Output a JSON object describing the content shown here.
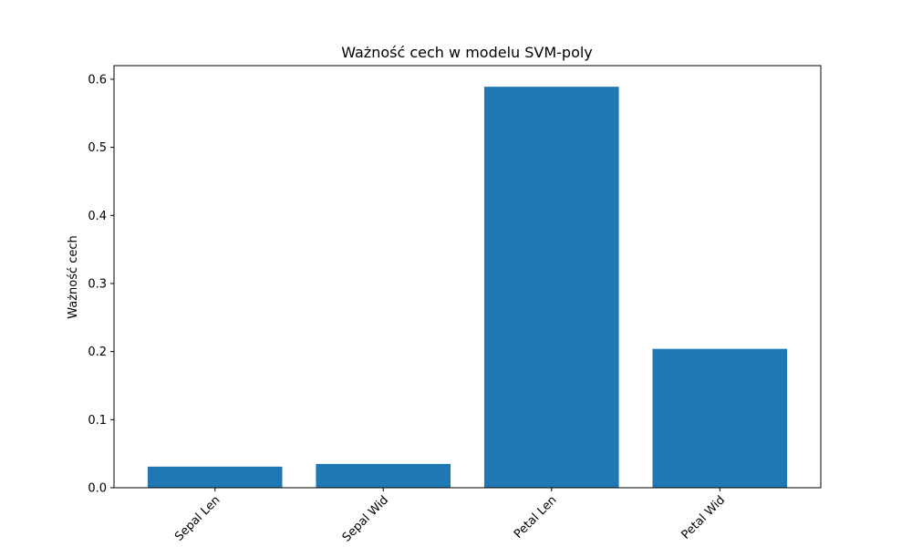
{
  "chart_data": {
    "type": "bar",
    "title": "Ważność cech w modelu SVM-poly",
    "xlabel": "",
    "ylabel": "Ważność cech",
    "categories": [
      "Sepal Len",
      "Sepal Wid",
      "Petal Len",
      "Petal Wid"
    ],
    "values": [
      0.031,
      0.035,
      0.589,
      0.204
    ],
    "ylim": [
      0,
      0.62
    ],
    "yticks": [
      0.0,
      0.1,
      0.2,
      0.3,
      0.4,
      0.5,
      0.6
    ],
    "ytick_labels": [
      "0.0",
      "0.1",
      "0.2",
      "0.3",
      "0.4",
      "0.5",
      "0.6"
    ],
    "xtick_rotation": 45,
    "grid": false,
    "bar_color": "#1f77b4"
  }
}
